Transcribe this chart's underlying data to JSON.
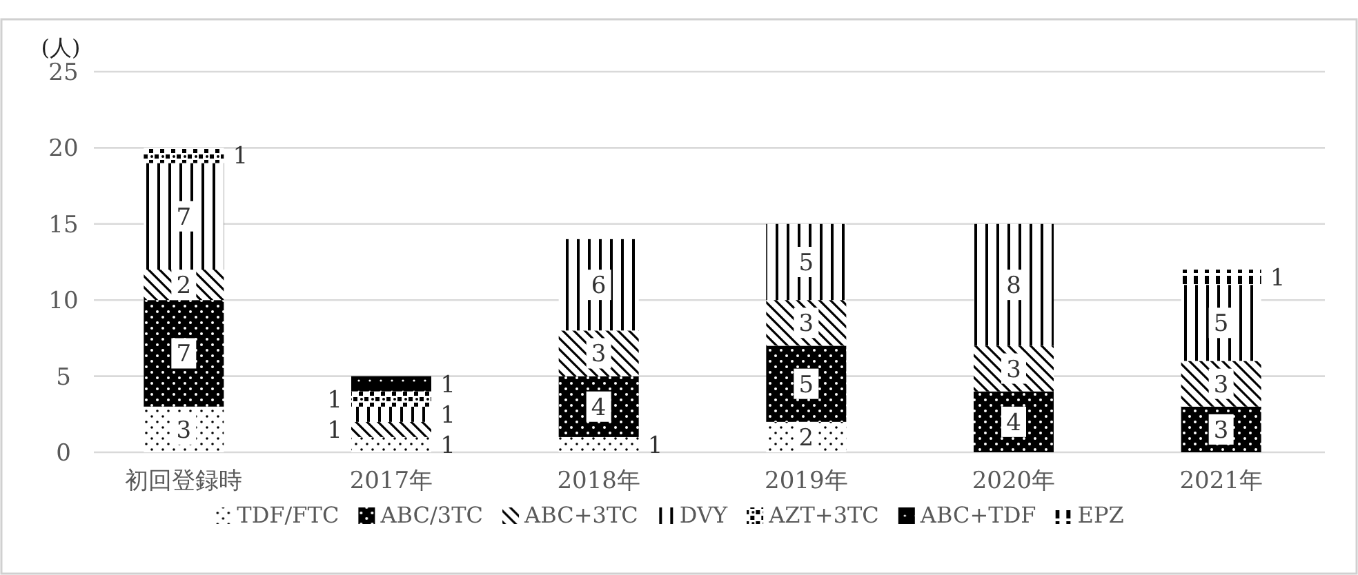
{
  "chart_data": {
    "type": "bar",
    "stacked": true,
    "ylabel": "(人)",
    "categories": [
      "初回登録時",
      "2017年",
      "2018年",
      "2019年",
      "2020年",
      "2021年"
    ],
    "series": [
      {
        "name": "TDF/FTC",
        "color": "#000000",
        "values": [
          3,
          1,
          1,
          2,
          null,
          null
        ]
      },
      {
        "name": "ABC/3TC",
        "color": "#000000",
        "values": [
          7,
          null,
          4,
          5,
          4,
          3
        ]
      },
      {
        "name": "ABC+3TC",
        "color": "#000000",
        "values": [
          2,
          1,
          3,
          3,
          3,
          3
        ]
      },
      {
        "name": "DVY",
        "color": "#000000",
        "values": [
          7,
          1,
          6,
          5,
          8,
          5
        ]
      },
      {
        "name": "AZT+3TC",
        "color": "#000000",
        "values": [
          1,
          1,
          null,
          null,
          null,
          null
        ]
      },
      {
        "name": "ABC+TDF",
        "color": "#000000",
        "values": [
          null,
          1,
          null,
          null,
          null,
          null
        ]
      },
      {
        "name": "EPZ",
        "color": "#000000",
        "values": [
          null,
          null,
          null,
          null,
          null,
          1
        ]
      }
    ],
    "ylim": [
      0,
      25
    ],
    "yticks": [
      0,
      5,
      10,
      15,
      20,
      25
    ],
    "grid": "y",
    "legend": "bottom",
    "data_labels": true
  }
}
